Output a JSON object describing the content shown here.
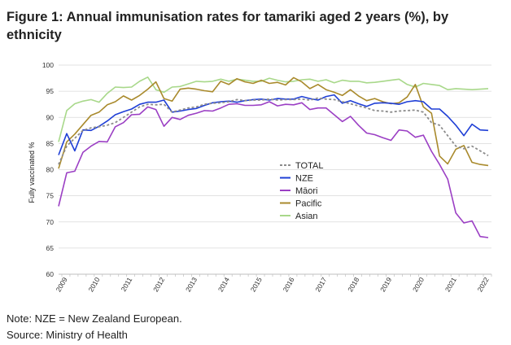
{
  "title": "Figure 1: Annual immunisation rates for tamariki aged 2 years (%), by ethnicity",
  "note": "Note: NZE = New Zealand European.",
  "source": "Source: Ministry of Health",
  "chart_data": {
    "type": "line",
    "title": "Figure 1: Annual immunisation rates for tamariki aged 2 years (%), by ethnicity",
    "xlabel": "",
    "ylabel": "Fully vaccinated %",
    "ylim": [
      60,
      100
    ],
    "xlim": [
      2008.9,
      2022.25
    ],
    "yticks": [
      60,
      65,
      70,
      75,
      80,
      85,
      90,
      95,
      100
    ],
    "xticks": [
      "2009",
      "2010",
      "2011",
      "2012",
      "2013",
      "2014",
      "2015",
      "2016",
      "2017",
      "2018",
      "2019",
      "2020",
      "2021",
      "2022"
    ],
    "grid": "horizontal",
    "legend_position": "center",
    "series": [
      {
        "name": "TOTAL",
        "color": "#8c8c8c",
        "dash": true,
        "x": [
          2008.9,
          2009.15,
          2009.4,
          2009.65,
          2009.9,
          2010.15,
          2010.4,
          2010.65,
          2010.9,
          2011.15,
          2011.4,
          2011.65,
          2011.9,
          2012.15,
          2012.4,
          2012.65,
          2012.9,
          2013.15,
          2013.4,
          2013.65,
          2013.9,
          2014.15,
          2014.4,
          2014.65,
          2014.9,
          2015.15,
          2015.4,
          2015.65,
          2015.9,
          2016.15,
          2016.4,
          2016.65,
          2016.9,
          2017.15,
          2017.4,
          2017.65,
          2017.9,
          2018.15,
          2018.4,
          2018.65,
          2018.9,
          2019.15,
          2019.4,
          2019.65,
          2019.9,
          2020.15,
          2020.4,
          2020.65,
          2020.9,
          2021.15,
          2021.4,
          2021.65,
          2021.9,
          2022.15
        ],
        "y": [
          81,
          84.5,
          86,
          87.5,
          88,
          88.2,
          88.5,
          89,
          90,
          91,
          92,
          92.5,
          92.4,
          92.5,
          91,
          91.4,
          91.8,
          92,
          92.5,
          92.7,
          92.8,
          93,
          93.4,
          93.2,
          93.3,
          93.3,
          93.5,
          93.3,
          93.4,
          93.4,
          93.5,
          93.3,
          93.7,
          93.5,
          93.4,
          93,
          92.6,
          92.2,
          91.8,
          91.3,
          91.2,
          91,
          91.2,
          91.3,
          91.4,
          91,
          89,
          88.5,
          86.5,
          84.5,
          84,
          84.5,
          83.6,
          82.7
        ]
      },
      {
        "name": "NZE",
        "color": "#1f3fd6",
        "dash": false,
        "x": [
          2008.9,
          2009.15,
          2009.4,
          2009.65,
          2009.9,
          2010.15,
          2010.4,
          2010.65,
          2010.9,
          2011.15,
          2011.4,
          2011.65,
          2011.9,
          2012.15,
          2012.4,
          2012.65,
          2012.9,
          2013.15,
          2013.4,
          2013.65,
          2013.9,
          2014.15,
          2014.4,
          2014.65,
          2014.9,
          2015.15,
          2015.4,
          2015.65,
          2015.9,
          2016.15,
          2016.4,
          2016.65,
          2016.9,
          2017.15,
          2017.4,
          2017.65,
          2017.9,
          2018.15,
          2018.4,
          2018.65,
          2018.9,
          2019.15,
          2019.4,
          2019.65,
          2019.9,
          2020.15,
          2020.4,
          2020.65,
          2020.9,
          2021.15,
          2021.4,
          2021.65,
          2021.9,
          2022.15
        ],
        "y": [
          82.8,
          86.9,
          83.6,
          87.6,
          87.5,
          88.3,
          89.3,
          90.5,
          91.1,
          91.6,
          92.5,
          92.9,
          92.9,
          93.3,
          91,
          91.2,
          91.5,
          91.7,
          92.3,
          92.8,
          93,
          93.1,
          92.9,
          93.2,
          93.4,
          93.5,
          93.3,
          93.6,
          93.5,
          93.5,
          94,
          93.6,
          93.3,
          94,
          94.3,
          92.7,
          93.2,
          92.6,
          92.1,
          92.7,
          92.8,
          92.7,
          92.5,
          93,
          93.2,
          93,
          91.6,
          91.6,
          90.2,
          88.5,
          86.5,
          88.7,
          87.6,
          87.5
        ]
      },
      {
        "name": "Māori",
        "color": "#9b3fc4",
        "dash": false,
        "x": [
          2008.9,
          2009.15,
          2009.4,
          2009.65,
          2009.9,
          2010.15,
          2010.4,
          2010.65,
          2010.9,
          2011.15,
          2011.4,
          2011.65,
          2011.9,
          2012.15,
          2012.4,
          2012.65,
          2012.9,
          2013.15,
          2013.4,
          2013.65,
          2013.9,
          2014.15,
          2014.4,
          2014.65,
          2014.9,
          2015.15,
          2015.4,
          2015.65,
          2015.9,
          2016.15,
          2016.4,
          2016.65,
          2016.9,
          2017.15,
          2017.4,
          2017.65,
          2017.9,
          2018.15,
          2018.4,
          2018.65,
          2018.9,
          2019.15,
          2019.4,
          2019.65,
          2019.9,
          2020.15,
          2020.4,
          2020.65,
          2020.9,
          2021.15,
          2021.4,
          2021.65,
          2021.9,
          2022.15
        ],
        "y": [
          73,
          79.4,
          79.7,
          83.3,
          84.5,
          85.4,
          85.3,
          88.2,
          89,
          90.5,
          90.6,
          92,
          91.5,
          88.3,
          90,
          89.6,
          90.4,
          90.8,
          91.3,
          91.2,
          91.8,
          92.5,
          92.6,
          92.3,
          92.3,
          92.4,
          93,
          92.2,
          92.5,
          92.4,
          92.8,
          91.5,
          91.8,
          91.8,
          90.5,
          89.2,
          90.2,
          88.5,
          87,
          86.7,
          86.1,
          85.6,
          87.6,
          87.4,
          86.2,
          86.6,
          83.5,
          81,
          78.2,
          71.7,
          69.8,
          70.2,
          67.2,
          67
        ]
      },
      {
        "name": "Pacific",
        "color": "#a98a2c",
        "dash": false,
        "x": [
          2008.9,
          2009.15,
          2009.4,
          2009.65,
          2009.9,
          2010.15,
          2010.4,
          2010.65,
          2010.9,
          2011.15,
          2011.4,
          2011.65,
          2011.9,
          2012.15,
          2012.4,
          2012.65,
          2012.9,
          2013.15,
          2013.4,
          2013.65,
          2013.9,
          2014.15,
          2014.4,
          2014.65,
          2014.9,
          2015.15,
          2015.4,
          2015.65,
          2015.9,
          2016.15,
          2016.4,
          2016.65,
          2016.9,
          2017.15,
          2017.4,
          2017.65,
          2017.9,
          2018.15,
          2018.4,
          2018.65,
          2018.9,
          2019.15,
          2019.4,
          2019.65,
          2019.9,
          2020.15,
          2020.4,
          2020.65,
          2020.9,
          2021.15,
          2021.4,
          2021.65,
          2021.9,
          2022.15
        ],
        "y": [
          80.2,
          85.3,
          86.8,
          88.6,
          90.4,
          91,
          92.4,
          93,
          94.1,
          93.3,
          94.2,
          95.4,
          96.8,
          93.6,
          93.1,
          95.4,
          95.6,
          95.4,
          95.1,
          94.9,
          96.9,
          96.3,
          97.4,
          96.8,
          96.5,
          97.1,
          96.5,
          96.7,
          96.2,
          97.6,
          96.8,
          95.5,
          96.3,
          95.3,
          94.8,
          94.2,
          95.3,
          94.1,
          93.2,
          93.6,
          93,
          92.6,
          92.8,
          93.9,
          96.3,
          92,
          90.8,
          82.6,
          81.1,
          83.9,
          84.6,
          81.4,
          81,
          80.8
        ]
      },
      {
        "name": "Asian",
        "color": "#a8d88a",
        "dash": false,
        "x": [
          2008.9,
          2009.15,
          2009.4,
          2009.65,
          2009.9,
          2010.15,
          2010.4,
          2010.65,
          2010.9,
          2011.15,
          2011.4,
          2011.65,
          2011.9,
          2012.15,
          2012.4,
          2012.65,
          2012.9,
          2013.15,
          2013.4,
          2013.65,
          2013.9,
          2014.15,
          2014.4,
          2014.65,
          2014.9,
          2015.15,
          2015.4,
          2015.65,
          2015.9,
          2016.15,
          2016.4,
          2016.65,
          2016.9,
          2017.15,
          2017.4,
          2017.65,
          2017.9,
          2018.15,
          2018.4,
          2018.65,
          2018.9,
          2019.15,
          2019.4,
          2019.65,
          2019.9,
          2020.15,
          2020.4,
          2020.65,
          2020.9,
          2021.15,
          2021.4,
          2021.65,
          2021.9,
          2022.15
        ],
        "y": [
          85.3,
          91.3,
          92.6,
          93.1,
          93.4,
          92.9,
          94.6,
          95.8,
          95.7,
          95.8,
          96.9,
          97.7,
          95.3,
          94.8,
          95.8,
          95.9,
          96.4,
          96.9,
          96.8,
          96.9,
          97.3,
          96.9,
          97.3,
          97.1,
          96.9,
          96.9,
          97.5,
          97.1,
          96.8,
          96.9,
          97.2,
          97.3,
          96.9,
          97.2,
          96.6,
          97.1,
          96.9,
          96.9,
          96.6,
          96.7,
          96.9,
          97.1,
          97.3,
          96.3,
          95.8,
          96.5,
          96.3,
          96.1,
          95.3,
          95.5,
          95.4,
          95.3,
          95.4,
          95.5
        ]
      }
    ]
  }
}
